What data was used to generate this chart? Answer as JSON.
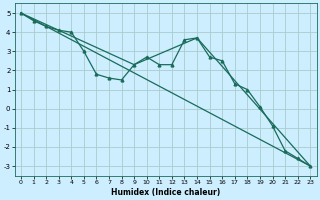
{
  "title": "",
  "xlabel": "Humidex (Indice chaleur)",
  "bg_color": "#cceeff",
  "grid_color": "#aacccc",
  "line_color": "#1a6b5a",
  "xlim": [
    -0.5,
    23.5
  ],
  "ylim": [
    -3.5,
    5.5
  ],
  "yticks": [
    -3,
    -2,
    -1,
    0,
    1,
    2,
    3,
    4,
    5
  ],
  "xticks": [
    0,
    1,
    2,
    3,
    4,
    5,
    6,
    7,
    8,
    9,
    10,
    11,
    12,
    13,
    14,
    15,
    16,
    17,
    18,
    19,
    20,
    21,
    22,
    23
  ],
  "series1_x": [
    0,
    1,
    2,
    3,
    4,
    5,
    6,
    7,
    8,
    9,
    10,
    11,
    12,
    13,
    14,
    15,
    16,
    17,
    18,
    19,
    20,
    21,
    22,
    23
  ],
  "series1_y": [
    5.0,
    4.6,
    4.3,
    4.1,
    4.0,
    3.0,
    1.8,
    1.6,
    1.5,
    2.3,
    2.7,
    2.3,
    2.3,
    3.6,
    3.7,
    2.7,
    2.5,
    1.3,
    1.0,
    0.1,
    -0.9,
    -2.2,
    -2.6,
    -3.0
  ],
  "series2_x": [
    0,
    23
  ],
  "series2_y": [
    5.0,
    -3.0
  ],
  "series3_x": [
    0,
    9,
    14,
    23
  ],
  "series3_y": [
    5.0,
    2.3,
    3.7,
    -3.0
  ]
}
